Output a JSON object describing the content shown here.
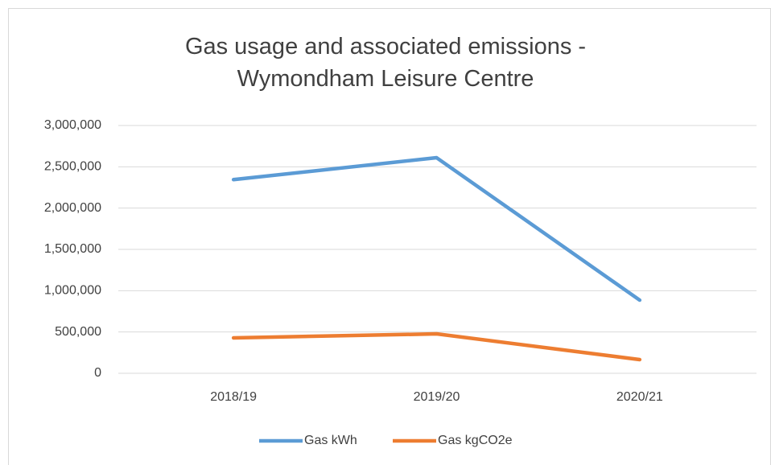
{
  "chart_data": {
    "type": "line",
    "title": "Gas usage and associated emissions - Wymondham Leisure Centre",
    "categories": [
      "2018/19",
      "2019/20",
      "2020/21"
    ],
    "series": [
      {
        "name": "Gas kWh",
        "color": "#5b9bd5",
        "values": [
          2345000,
          2610000,
          886000
        ]
      },
      {
        "name": "Gas kgCO2e",
        "color": "#ed7d31",
        "values": [
          429000,
          477000,
          166000
        ]
      }
    ],
    "ylim": [
      0,
      3000000
    ],
    "yticks": [
      0,
      {
        "value": 500000,
        "label": "500,000"
      },
      {
        "value": 1000000,
        "label": "1,000,000"
      },
      {
        "value": 1500000,
        "label": "1,500,000"
      },
      {
        "value": 2000000,
        "label": "2,000,000"
      },
      {
        "value": 2500000,
        "label": "2,500,000"
      },
      {
        "value": 3000000,
        "label": "3,000,000"
      }
    ],
    "grid": true,
    "legend": "bottom"
  }
}
